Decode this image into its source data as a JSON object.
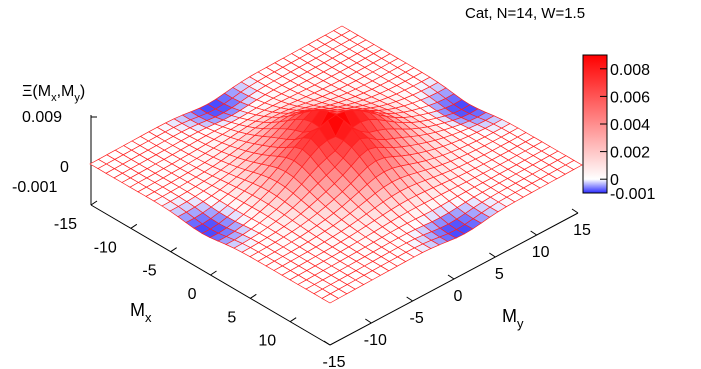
{
  "chart_data": {
    "type": "surface3d",
    "title": "Cat, N=14, W=1.5",
    "xlabel": "M_x",
    "ylabel": "M_y",
    "zlabel": "Ξ(M_x,M_y)",
    "x_range": [
      -15,
      15
    ],
    "y_range": [
      -15,
      15
    ],
    "z_range": [
      -0.001,
      0.009
    ],
    "grid_step": 1,
    "x_ticks": [
      "-15",
      "-10",
      "-5",
      "0",
      "5",
      "10"
    ],
    "y_ticks": [
      "-15",
      "-10",
      "-5",
      "0",
      "5",
      "10",
      "15"
    ],
    "z_ticks": [
      "0.009",
      "0",
      "-0.001"
    ],
    "colorbar": {
      "range": [
        -0.001,
        0.009
      ],
      "ticks": [
        "0.008",
        "0.006",
        "0.004",
        "0.002",
        "0",
        "-0.001"
      ],
      "colors": {
        "min": "#2b2bff",
        "zero": "#ffffff",
        "max": "#ff0000"
      }
    },
    "surface_model": {
      "center_peak": {
        "x": 0,
        "y": 0,
        "height": 0.0085,
        "width": 4.5
      },
      "negative_wells": [
        {
          "x": -14,
          "y": -1,
          "depth": -0.001
        },
        {
          "x": -1,
          "y": -14,
          "depth": -0.001
        },
        {
          "x": 14,
          "y": 1,
          "depth": -0.001
        },
        {
          "x": 1,
          "y": 14,
          "depth": -0.001
        }
      ]
    },
    "mesh_color": "#ff2020"
  }
}
